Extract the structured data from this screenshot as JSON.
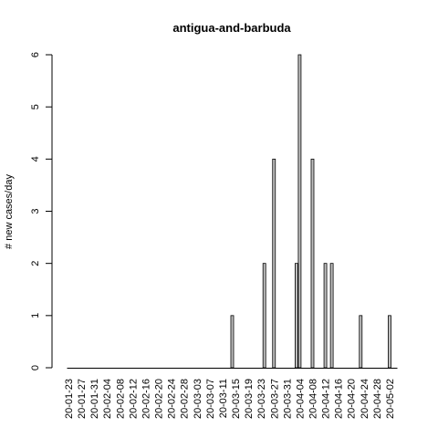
{
  "chart_data": {
    "type": "bar",
    "title": "antigua-and-barbuda",
    "xlabel": "",
    "ylabel": "# new cases/day",
    "ylim": [
      0,
      6
    ],
    "yticks": [
      0,
      1,
      2,
      3,
      4,
      5,
      6
    ],
    "start_date": "2020-01-23",
    "end_date": "2020-05-04",
    "x_tick_labels": [
      "20-01-23",
      "20-01-27",
      "20-01-31",
      "20-02-04",
      "20-02-08",
      "20-02-12",
      "20-02-16",
      "20-02-20",
      "20-02-24",
      "20-02-28",
      "20-03-03",
      "20-03-07",
      "20-03-11",
      "20-03-15",
      "20-03-19",
      "20-03-23",
      "20-03-27",
      "20-03-31",
      "20-04-04",
      "20-04-08",
      "20-04-12",
      "20-04-16",
      "20-04-20",
      "20-04-24",
      "20-04-28",
      "20-05-02"
    ],
    "nonzero_values": [
      {
        "date": "2020-03-14",
        "value": 1
      },
      {
        "date": "2020-03-24",
        "value": 2
      },
      {
        "date": "2020-03-27",
        "value": 4
      },
      {
        "date": "2020-04-03",
        "value": 2
      },
      {
        "date": "2020-04-04",
        "value": 6
      },
      {
        "date": "2020-04-08",
        "value": 4
      },
      {
        "date": "2020-04-12",
        "value": 2
      },
      {
        "date": "2020-04-14",
        "value": 2
      },
      {
        "date": "2020-04-23",
        "value": 1
      },
      {
        "date": "2020-05-02",
        "value": 1
      }
    ],
    "grid": false,
    "legend": "none"
  }
}
